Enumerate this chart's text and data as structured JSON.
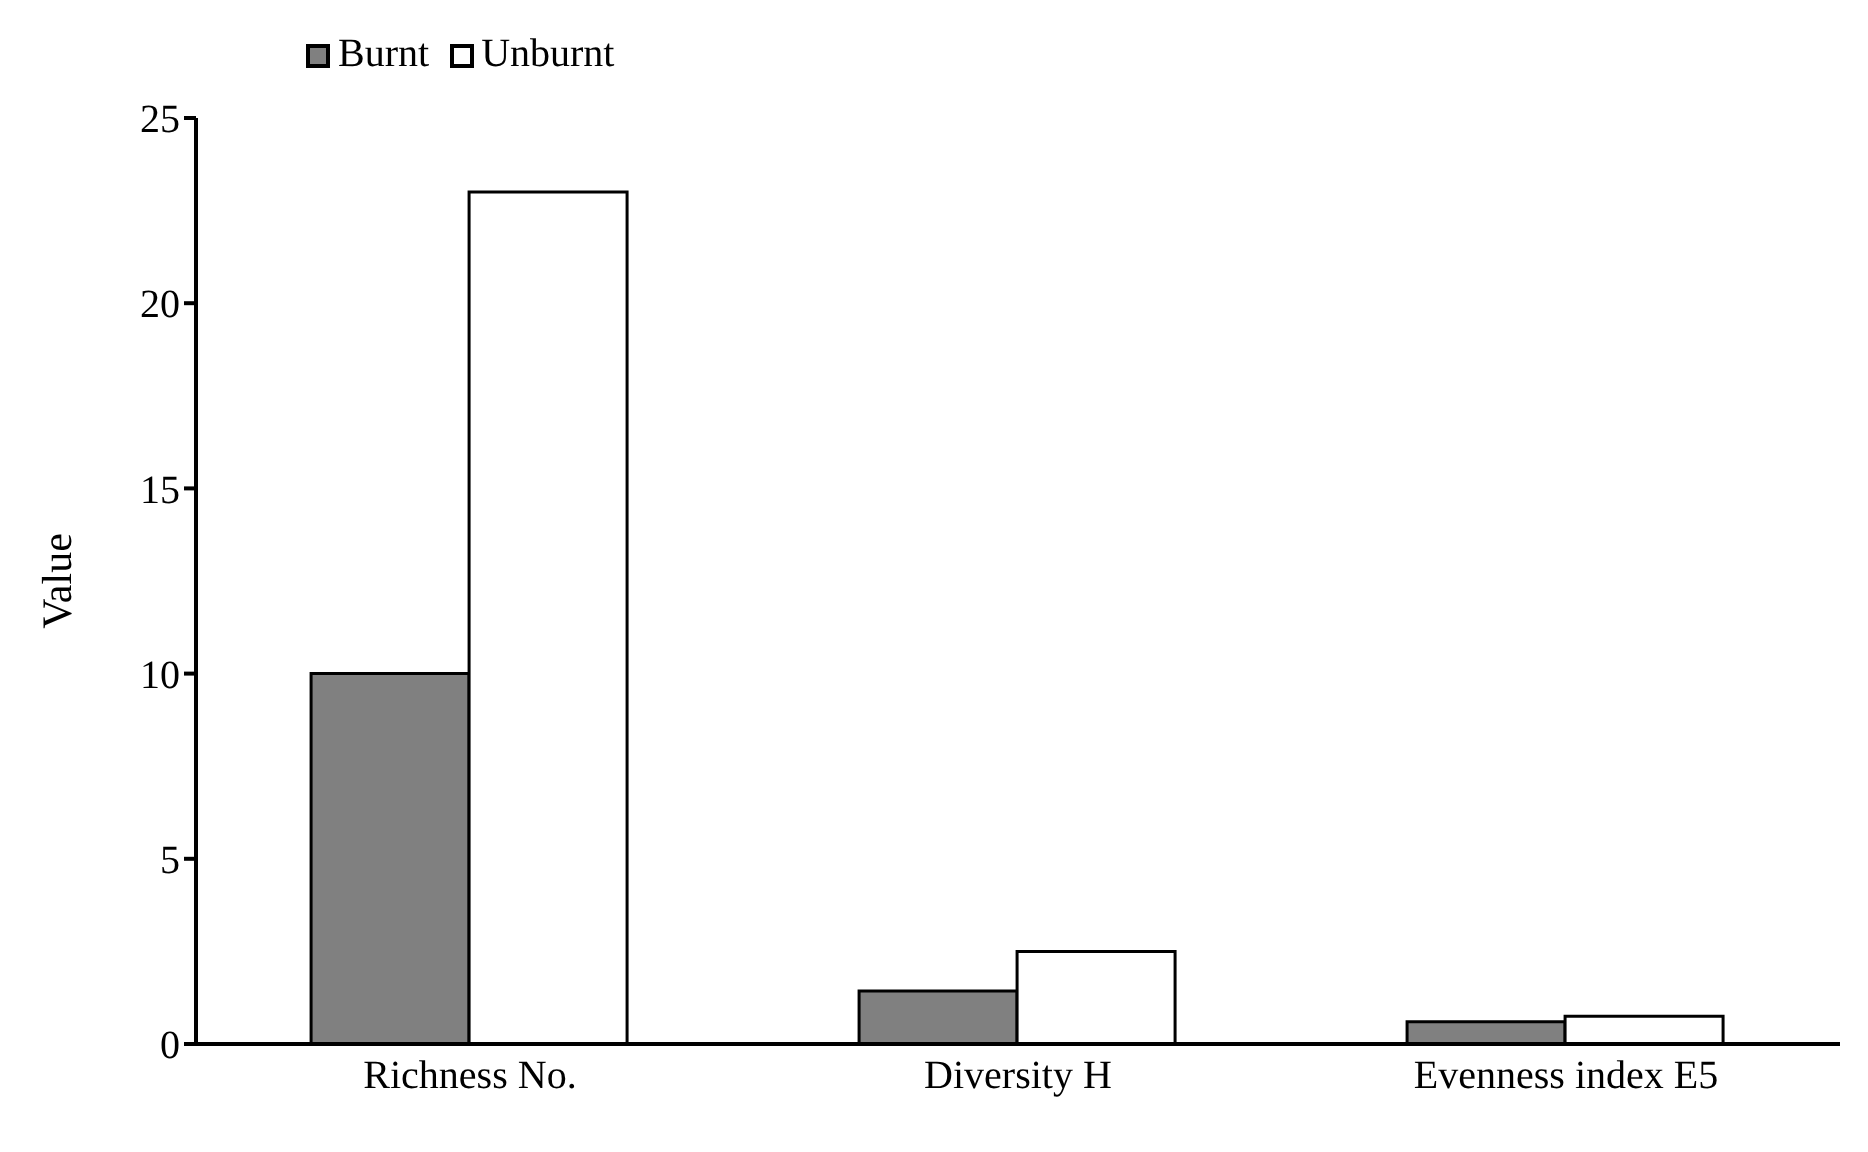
{
  "chart_data": {
    "type": "bar",
    "ylabel": "Value",
    "categories": [
      "Richness No.",
      "Diversity H",
      "Evenness index E5"
    ],
    "series": [
      {
        "name": "Burnt",
        "color": "#808080",
        "values": [
          10,
          1.43,
          0.6
        ]
      },
      {
        "name": "Unburnt",
        "color": "#ffffff",
        "values": [
          23,
          2.5,
          0.75
        ]
      }
    ],
    "ylim": [
      0,
      25
    ],
    "yticks": [
      0,
      5,
      10,
      15,
      20,
      25
    ],
    "grid": false,
    "legend": "top left"
  }
}
